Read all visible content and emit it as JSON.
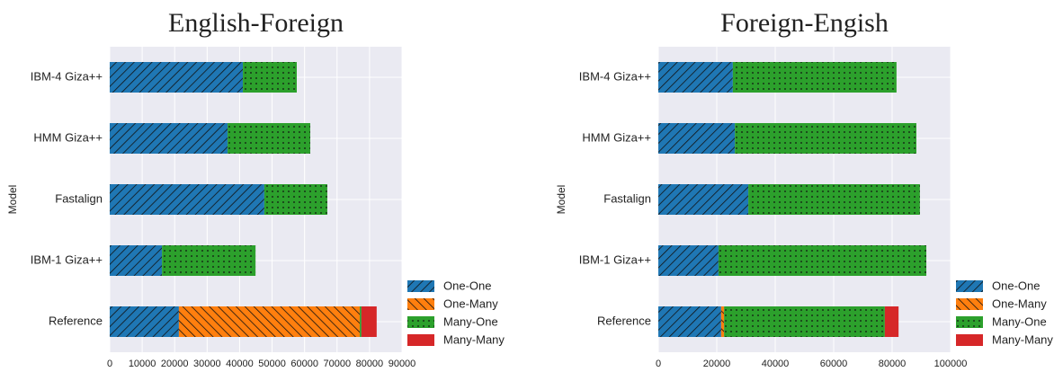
{
  "chart_data": [
    {
      "type": "bar",
      "title": "English-Foreign",
      "ylabel": "Model",
      "categories": [
        "IBM-4 Giza++",
        "HMM Giza++",
        "Fastalign",
        "IBM-1 Giza++",
        "Reference"
      ],
      "series": [
        {
          "name": "One-One",
          "color": "#1f77b4",
          "hatch": "///",
          "values": [
            41000,
            36300,
            47600,
            16100,
            21300
          ]
        },
        {
          "name": "One-Many",
          "color": "#ff7f0e",
          "hatch": "\\\\\\",
          "values": [
            0,
            0,
            0,
            0,
            55700
          ]
        },
        {
          "name": "Many-One",
          "color": "#2ca02c",
          "hatch": "..",
          "values": [
            16600,
            25450,
            19400,
            28800,
            500
          ]
        },
        {
          "name": "Many-Many",
          "color": "#d62728",
          "hatch": "",
          "values": [
            0,
            0,
            0,
            0,
            4700
          ]
        }
      ],
      "xlim": [
        0,
        90000
      ],
      "xticks": [
        0,
        10000,
        20000,
        30000,
        40000,
        50000,
        60000,
        70000,
        80000,
        90000
      ],
      "grid": true,
      "legend": "lower right outside"
    },
    {
      "type": "bar",
      "title": "Foreign-Engish",
      "ylabel": "Model",
      "categories": [
        "IBM-4 Giza++",
        "HMM Giza++",
        "Fastalign",
        "IBM-1 Giza++",
        "Reference"
      ],
      "series": [
        {
          "name": "One-One",
          "color": "#1f77b4",
          "hatch": "///",
          "values": [
            25500,
            26200,
            30800,
            20600,
            21500
          ]
        },
        {
          "name": "One-Many",
          "color": "#ff7f0e",
          "hatch": "\\\\\\",
          "values": [
            0,
            0,
            0,
            0,
            1000
          ]
        },
        {
          "name": "Many-One",
          "color": "#2ca02c",
          "hatch": "..",
          "values": [
            56000,
            62100,
            58700,
            71100,
            55000
          ]
        },
        {
          "name": "Many-Many",
          "color": "#d62728",
          "hatch": "",
          "values": [
            0,
            0,
            0,
            0,
            4700
          ]
        }
      ],
      "xlim": [
        0,
        100000
      ],
      "xticks": [
        0,
        20000,
        40000,
        60000,
        80000,
        100000
      ],
      "grid": true,
      "legend": "lower right outside"
    }
  ]
}
